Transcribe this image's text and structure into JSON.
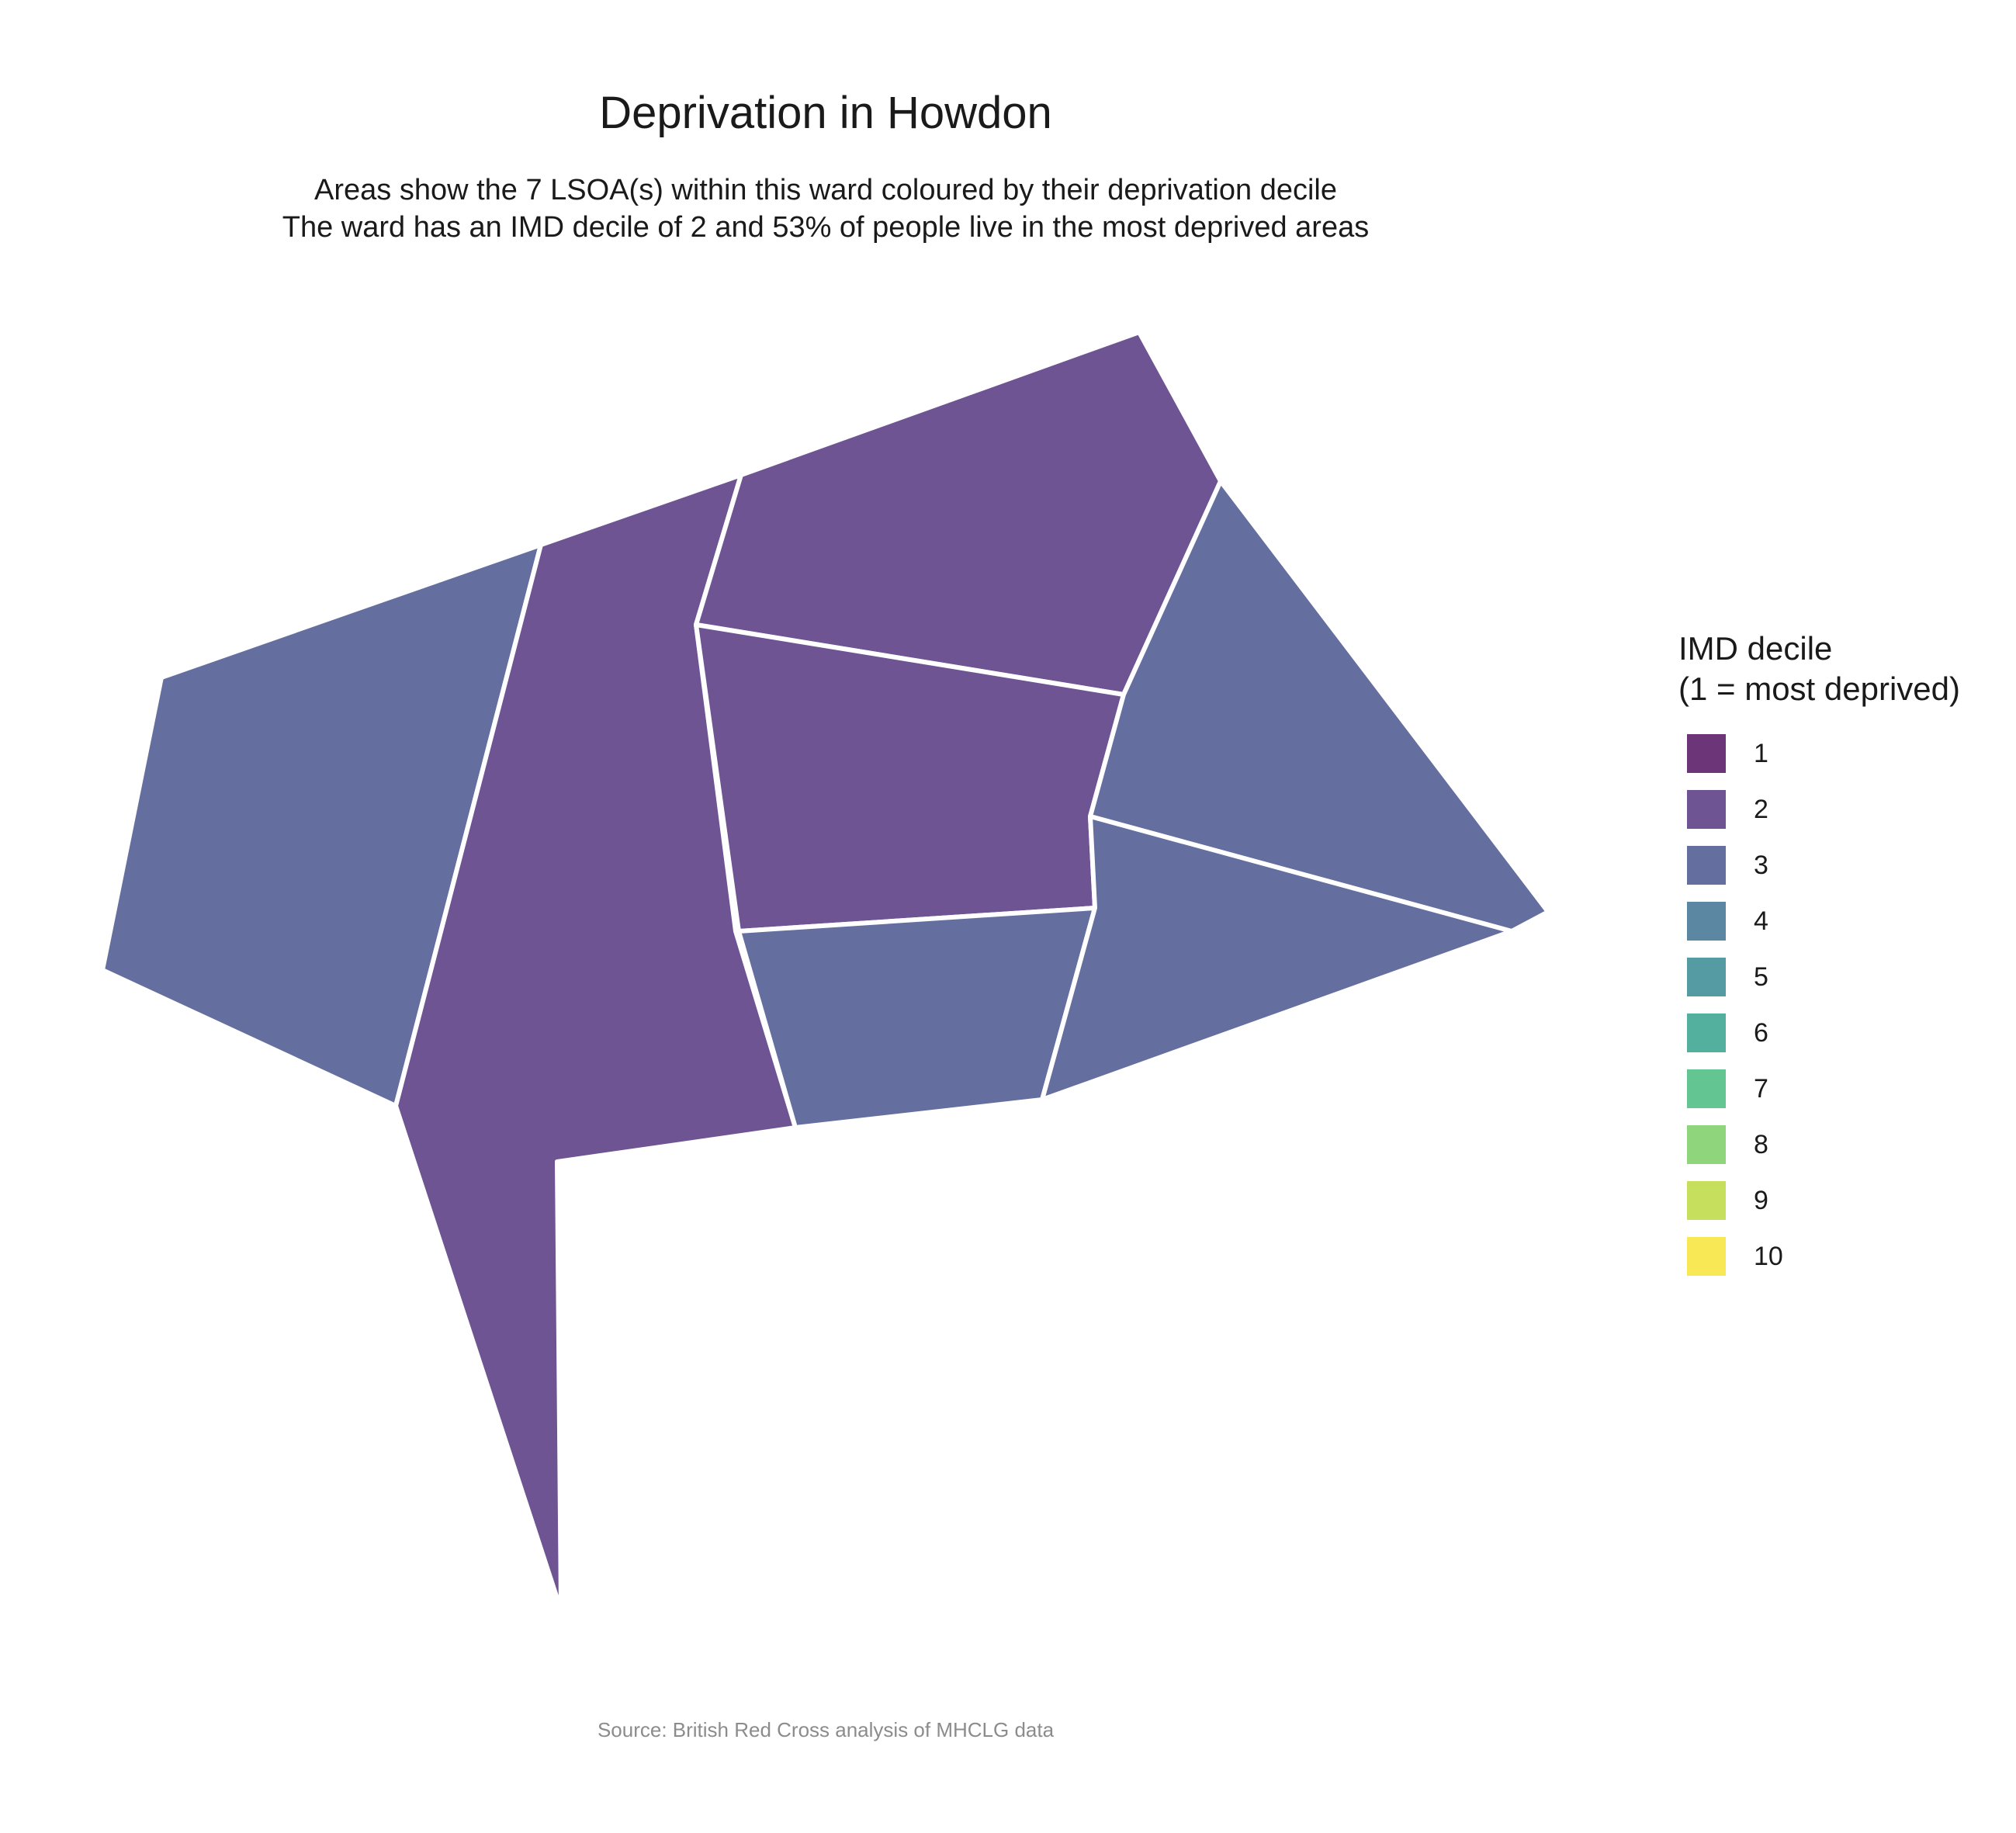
{
  "title": "Deprivation in Howdon",
  "subtitle_line1": "Areas show the 7 LSOA(s) within this ward coloured by their deprivation decile",
  "subtitle_line2": "The ward has an IMD decile of 2 and 53% of people live in the most deprived areas",
  "legend": {
    "title_line1": "IMD decile",
    "title_line2": "(1 = most deprived)",
    "items": [
      {
        "label": "1",
        "color": "#6b3577"
      },
      {
        "label": "2",
        "color": "#6e5493"
      },
      {
        "label": "3",
        "color": "#646e9f"
      },
      {
        "label": "4",
        "color": "#5b87a2"
      },
      {
        "label": "5",
        "color": "#559ba4"
      },
      {
        "label": "6",
        "color": "#53b09f"
      },
      {
        "label": "7",
        "color": "#63c592"
      },
      {
        "label": "8",
        "color": "#8fd57b"
      },
      {
        "label": "9",
        "color": "#c6e05e"
      },
      {
        "label": "10",
        "color": "#f9e855"
      }
    ]
  },
  "map": {
    "border_color": "#ffffff",
    "areas": [
      {
        "name": "lsoa-west",
        "decile": 3
      },
      {
        "name": "lsoa-central-west",
        "decile": 2
      },
      {
        "name": "lsoa-north",
        "decile": 2
      },
      {
        "name": "lsoa-central",
        "decile": 2
      },
      {
        "name": "lsoa-east",
        "decile": 3
      },
      {
        "name": "lsoa-south-central",
        "decile": 3
      },
      {
        "name": "lsoa-south-east",
        "decile": 3
      }
    ]
  },
  "caption": "Source: British Red Cross analysis of MHCLG data"
}
